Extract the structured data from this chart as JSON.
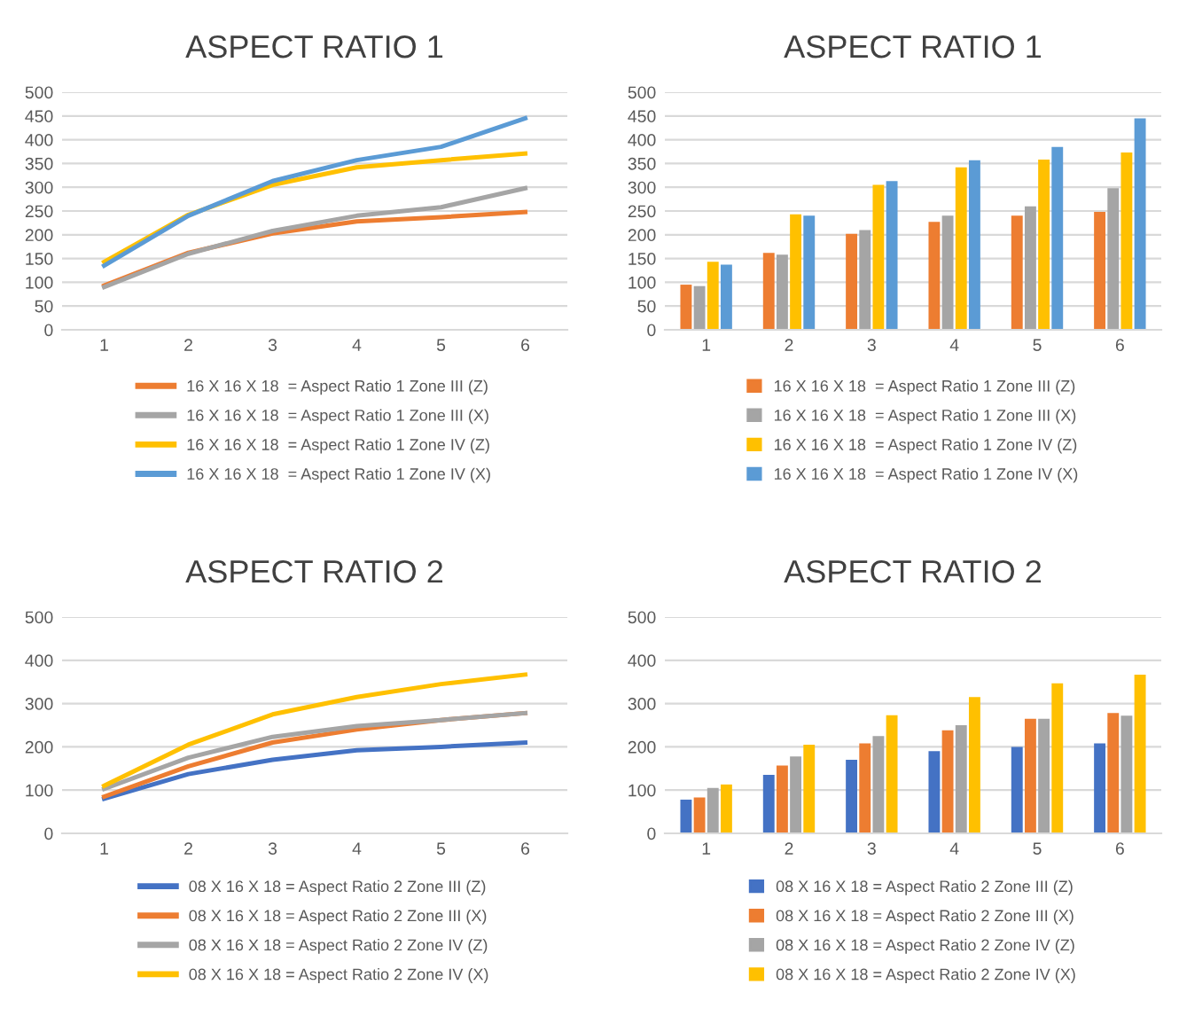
{
  "chart_data": [
    {
      "type": "line",
      "title": "ASPECT RATIO 1",
      "categories": [
        "1",
        "2",
        "3",
        "4",
        "5",
        "6"
      ],
      "ylim": [
        0,
        500
      ],
      "yticks": [
        0,
        50,
        100,
        150,
        200,
        250,
        300,
        350,
        400,
        450,
        500
      ],
      "grid": "y",
      "legend": "bottom",
      "marker": "none",
      "series": [
        {
          "name": "16 X 16 X 18  = Aspect Ratio 1 Zone III (Z)",
          "color": "#ed7d31",
          "values": [
            93,
            162,
            203,
            228,
            237,
            248
          ]
        },
        {
          "name": "16 X 16 X 18  = Aspect Ratio 1 Zone III (X)",
          "color": "#a5a5a5",
          "values": [
            90,
            160,
            208,
            240,
            258,
            298
          ]
        },
        {
          "name": "16 X 16 X 18  = Aspect Ratio 1 Zone IV (Z)",
          "color": "#ffc000",
          "values": [
            143,
            242,
            305,
            342,
            357,
            371
          ]
        },
        {
          "name": "16 X 16 X 18  = Aspect Ratio 1 Zone IV (X)",
          "color": "#5b9bd5",
          "values": [
            135,
            240,
            313,
            357,
            385,
            445
          ]
        }
      ]
    },
    {
      "type": "bar",
      "title": "ASPECT RATIO 1",
      "categories": [
        "1",
        "2",
        "3",
        "4",
        "5",
        "6"
      ],
      "ylim": [
        0,
        500
      ],
      "yticks": [
        0,
        50,
        100,
        150,
        200,
        250,
        300,
        350,
        400,
        450,
        500
      ],
      "grid": "y",
      "legend": "bottom",
      "series": [
        {
          "name": "16 X 16 X 18  = Aspect Ratio 1 Zone III (Z)",
          "color": "#ed7d31",
          "values": [
            95,
            162,
            202,
            227,
            240,
            248
          ]
        },
        {
          "name": "16 X 16 X 18  = Aspect Ratio 1 Zone III (X)",
          "color": "#a5a5a5",
          "values": [
            92,
            158,
            210,
            240,
            260,
            298
          ]
        },
        {
          "name": "16 X 16 X 18  = Aspect Ratio 1 Zone IV (Z)",
          "color": "#ffc000",
          "values": [
            143,
            243,
            305,
            342,
            358,
            373
          ]
        },
        {
          "name": "16 X 16 X 18  = Aspect Ratio 1 Zone IV (X)",
          "color": "#5b9bd5",
          "values": [
            137,
            240,
            313,
            357,
            385,
            445
          ]
        }
      ]
    },
    {
      "type": "line",
      "title": "ASPECT RATIO 2",
      "categories": [
        "1",
        "2",
        "3",
        "4",
        "5",
        "6"
      ],
      "ylim": [
        0,
        500
      ],
      "yticks": [
        0,
        100,
        200,
        300,
        400,
        500
      ],
      "grid": "y",
      "legend": "bottom",
      "marker": "none",
      "series": [
        {
          "name": "08 X 16 X 18 = Aspect Ratio 2 Zone III (Z)",
          "color": "#4472c4",
          "values": [
            80,
            137,
            170,
            192,
            200,
            210
          ]
        },
        {
          "name": "08 X 16 X 18 = Aspect Ratio 2 Zone III (X)",
          "color": "#ed7d31",
          "values": [
            85,
            155,
            210,
            240,
            262,
            278
          ]
        },
        {
          "name": "08 X 16 X 18 = Aspect Ratio 2 Zone IV (Z)",
          "color": "#a5a5a5",
          "values": [
            103,
            175,
            223,
            248,
            262,
            278
          ]
        },
        {
          "name": "08 X 16 X 18 = Aspect Ratio 2 Zone IV (X)",
          "color": "#ffc000",
          "values": [
            110,
            205,
            275,
            315,
            345,
            367
          ]
        }
      ]
    },
    {
      "type": "bar",
      "title": "ASPECT RATIO 2",
      "categories": [
        "1",
        "2",
        "3",
        "4",
        "5",
        "6"
      ],
      "ylim": [
        0,
        500
      ],
      "yticks": [
        0,
        100,
        200,
        300,
        400,
        500
      ],
      "grid": "y",
      "legend": "bottom",
      "series": [
        {
          "name": "08 X 16 X 18 = Aspect Ratio 2 Zone III (Z)",
          "color": "#4472c4",
          "values": [
            78,
            135,
            170,
            190,
            200,
            208
          ]
        },
        {
          "name": "08 X 16 X 18 = Aspect Ratio 2 Zone III (X)",
          "color": "#ed7d31",
          "values": [
            83,
            157,
            208,
            238,
            265,
            278
          ]
        },
        {
          "name": "08 X 16 X 18 = Aspect Ratio 2 Zone IV (Z)",
          "color": "#a5a5a5",
          "values": [
            105,
            178,
            225,
            250,
            265,
            272
          ]
        },
        {
          "name": "08 X 16 X 18 = Aspect Ratio 2 Zone IV (X)",
          "color": "#ffc000",
          "values": [
            113,
            205,
            273,
            315,
            347,
            367
          ]
        }
      ]
    }
  ]
}
